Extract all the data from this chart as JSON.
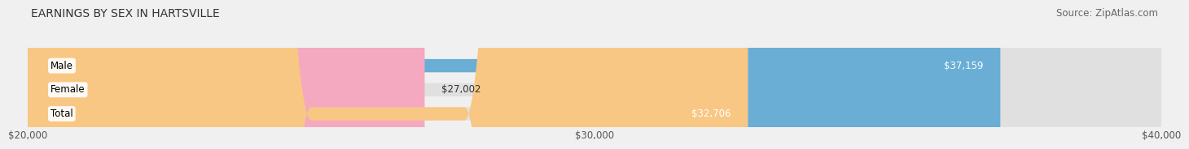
{
  "title": "EARNINGS BY SEX IN HARTSVILLE",
  "source": "Source: ZipAtlas.com",
  "categories": [
    "Male",
    "Female",
    "Total"
  ],
  "values": [
    37159,
    27002,
    32706
  ],
  "bar_colors": [
    "#6aaed6",
    "#f4a9c0",
    "#f9c784"
  ],
  "bar_labels": [
    "$37,159",
    "$27,002",
    "$32,706"
  ],
  "xlim": [
    20000,
    40000
  ],
  "xticks": [
    20000,
    30000,
    40000
  ],
  "xtick_labels": [
    "$20,000",
    "$30,000",
    "$40,000"
  ],
  "background_color": "#f0f0f0",
  "bar_bg_color": "#e0e0e0",
  "title_fontsize": 10,
  "source_fontsize": 8.5,
  "label_fontsize": 8.5,
  "tick_fontsize": 8.5,
  "category_fontsize": 8.5
}
